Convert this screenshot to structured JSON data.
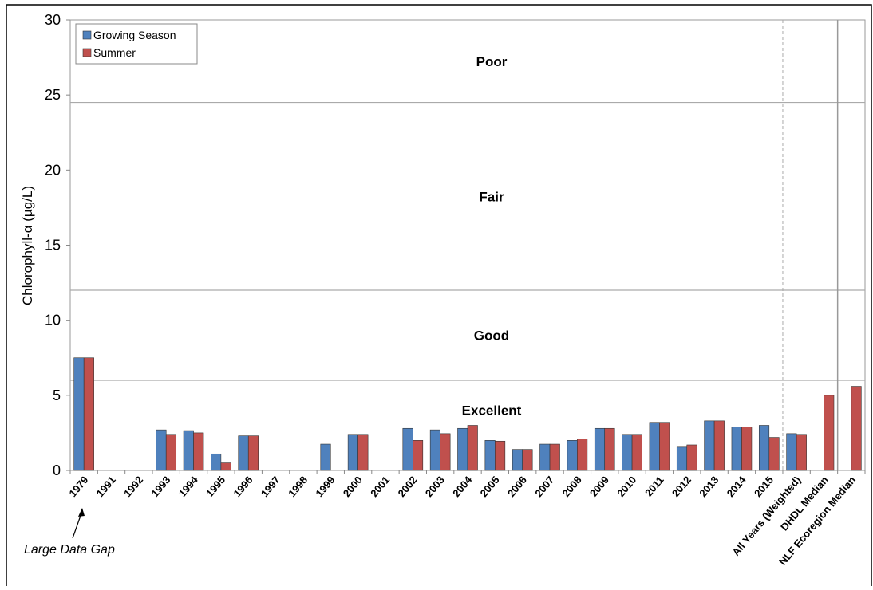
{
  "chart_data": {
    "type": "bar",
    "y_label": "Chlorophyll-α  (µg/L)",
    "annotation": "Large Data Gap",
    "categories": [
      "1979",
      "1991",
      "1992",
      "1993",
      "1994",
      "1995",
      "1996",
      "1997",
      "1998",
      "1999",
      "2000",
      "2001",
      "2002",
      "2003",
      "2004",
      "2005",
      "2006",
      "2007",
      "2008",
      "2009",
      "2010",
      "2011",
      "2012",
      "2013",
      "2014",
      "2015",
      "All Years (Weighted)",
      "DHDL Median",
      "NLF Ecoregion Median"
    ],
    "series": [
      {
        "name": "Growing Season",
        "color": "#4f81bd",
        "values": [
          7.5,
          null,
          null,
          2.7,
          2.65,
          1.1,
          2.3,
          null,
          null,
          1.75,
          2.4,
          null,
          2.8,
          2.7,
          2.8,
          2.0,
          1.4,
          1.75,
          2.0,
          2.8,
          2.4,
          3.2,
          1.55,
          3.3,
          2.9,
          3.0,
          2.45,
          null,
          null
        ]
      },
      {
        "name": "Summer",
        "color": "#c0504d",
        "values": [
          7.5,
          null,
          null,
          2.4,
          2.5,
          0.5,
          2.3,
          null,
          null,
          null,
          2.4,
          null,
          2.0,
          2.45,
          3.0,
          1.95,
          1.4,
          1.75,
          2.1,
          2.8,
          2.4,
          3.2,
          1.7,
          3.3,
          2.9,
          2.2,
          2.4,
          5.0,
          5.6
        ]
      }
    ],
    "ylim": [
      0,
      30
    ],
    "yticks": [
      0,
      5,
      10,
      15,
      20,
      25,
      30
    ],
    "thresholds": [
      6,
      12,
      24.5
    ],
    "zone_labels": [
      "Excellent",
      "Good",
      "Fair",
      "Poor"
    ],
    "legend": "upper left"
  }
}
